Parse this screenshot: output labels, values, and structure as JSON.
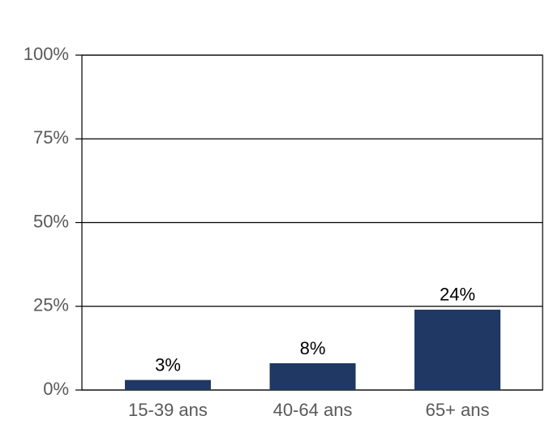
{
  "chart_data": {
    "type": "bar",
    "categories": [
      "15-39 ans",
      "40-64 ans",
      "65+ ans"
    ],
    "values": [
      3,
      8,
      24
    ],
    "value_labels": [
      "3%",
      "8%",
      "24%"
    ],
    "color": "#1f3864",
    "ylim": [
      0,
      100
    ],
    "yticks": [
      {
        "value": 0,
        "label": "0%"
      },
      {
        "value": 25,
        "label": "25%"
      },
      {
        "value": 50,
        "label": "50%"
      },
      {
        "value": 75,
        "label": "75%"
      },
      {
        "value": 100,
        "label": "100%"
      }
    ],
    "grid": true
  }
}
